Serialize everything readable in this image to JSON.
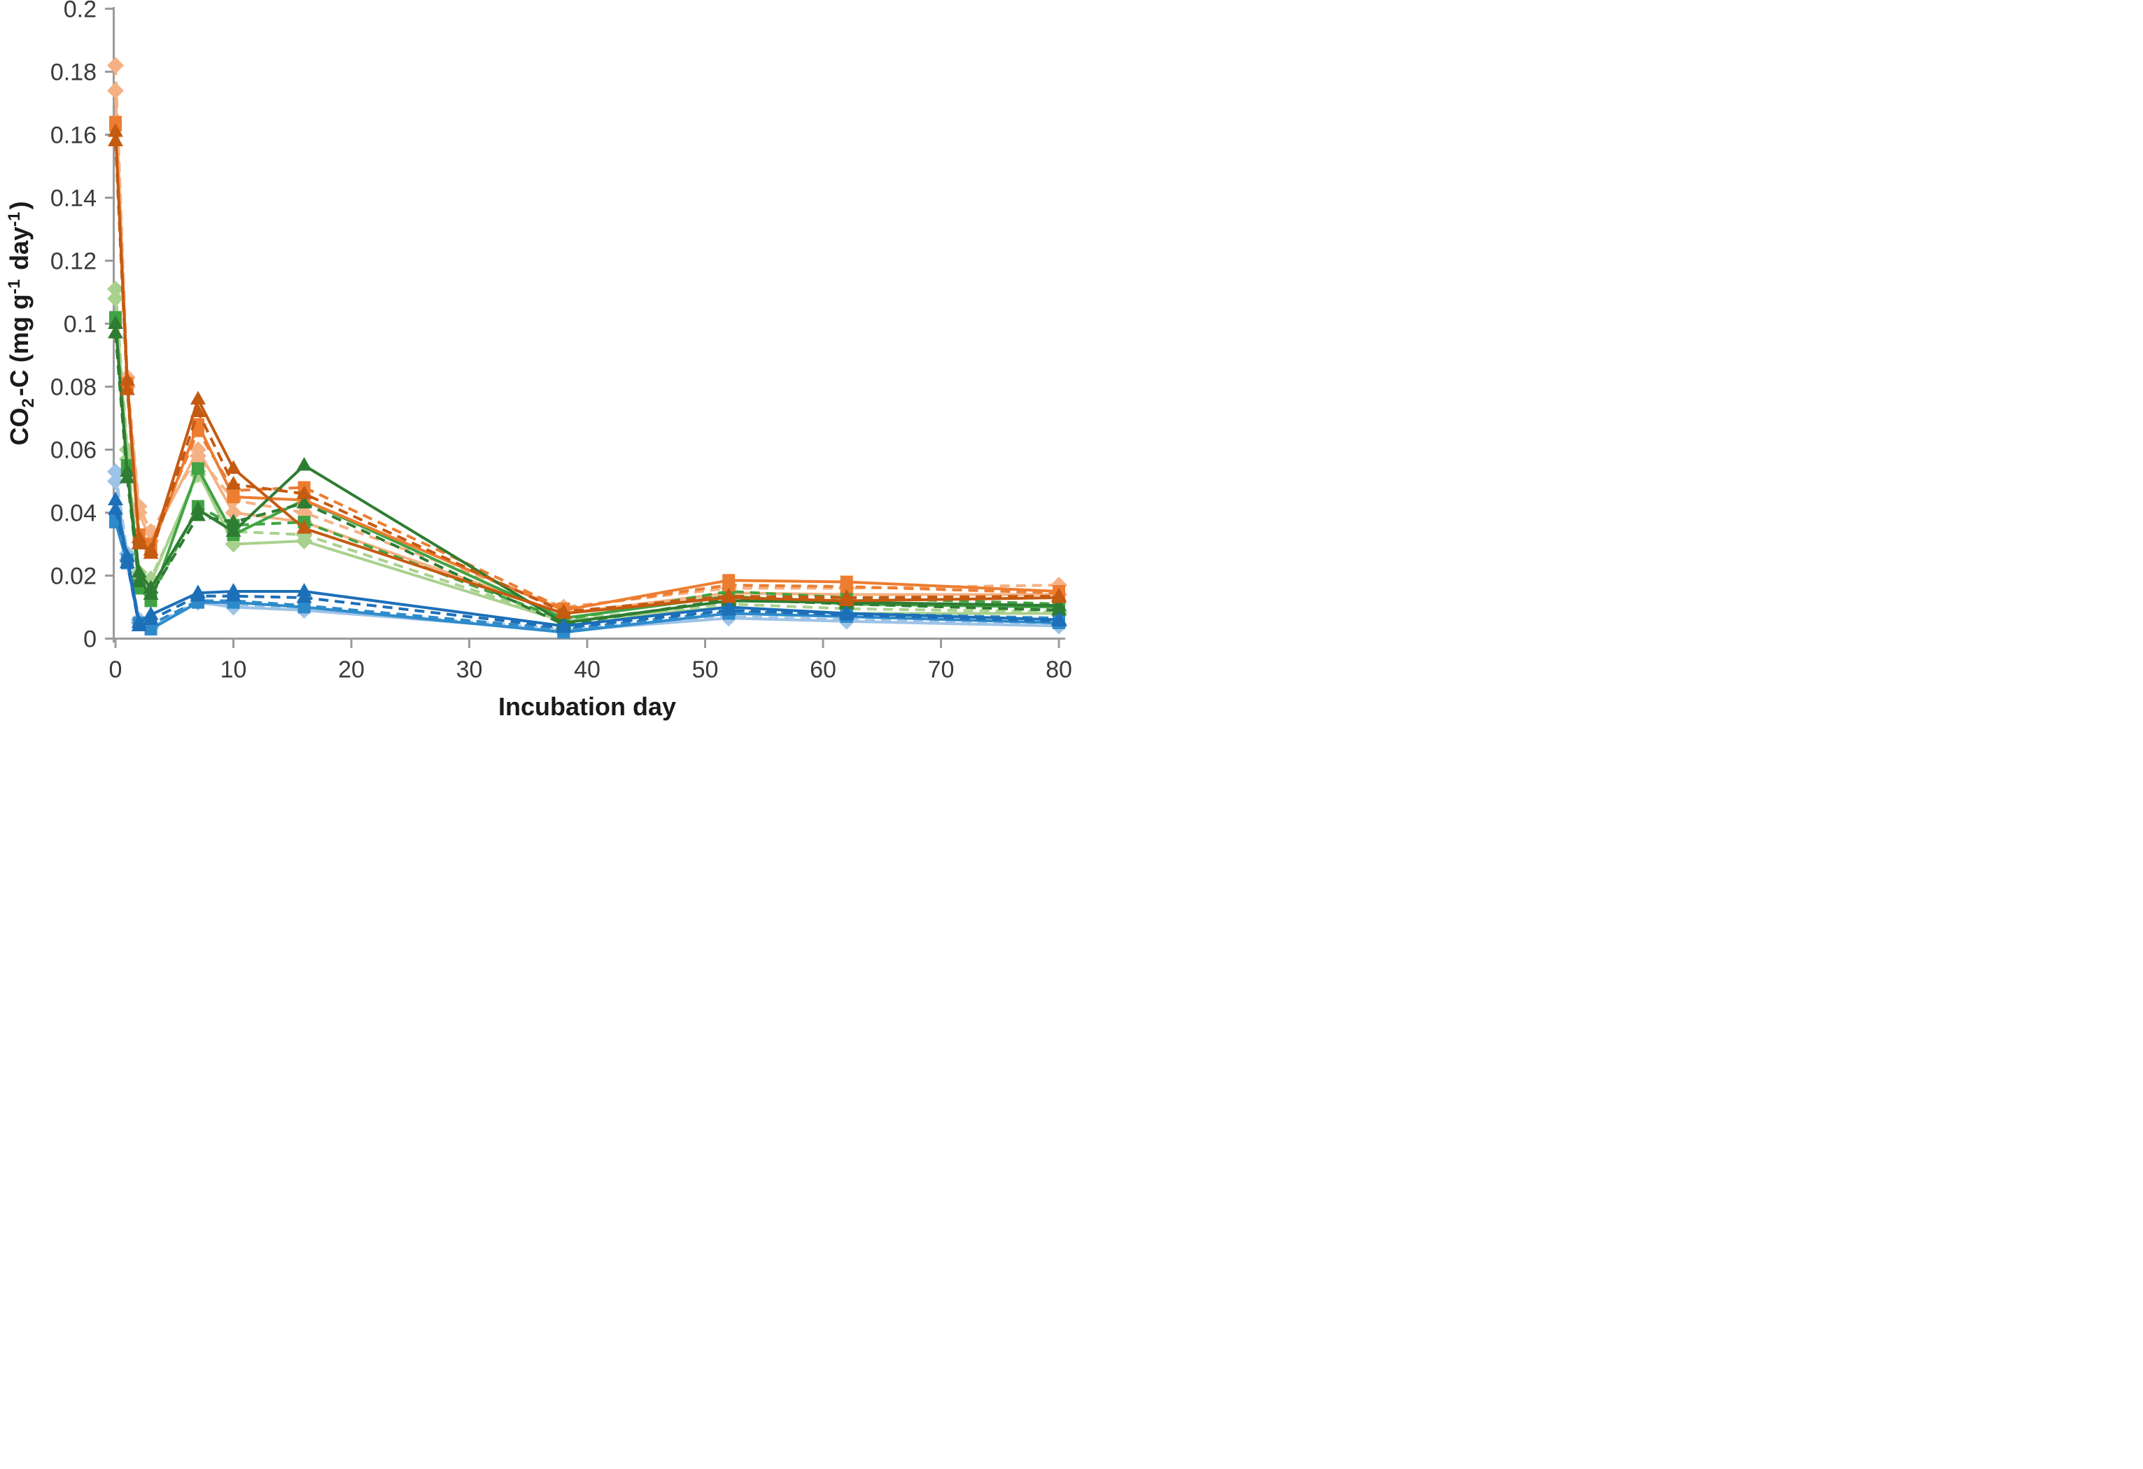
{
  "chart_data": {
    "type": "line",
    "title": "",
    "xlabel": "Incubation day",
    "ylabel": "CO2-C (mg g-1 day-1)",
    "ylabel_parts": [
      [
        "t",
        "CO"
      ],
      [
        "sub",
        "2"
      ],
      [
        "t",
        "-C (mg g"
      ],
      [
        "sup",
        "-1"
      ],
      [
        "t",
        " day"
      ],
      [
        "sup",
        "-1"
      ],
      [
        "t",
        ")"
      ]
    ],
    "x": [
      0,
      1,
      2,
      3,
      7,
      10,
      16,
      38,
      52,
      62,
      80
    ],
    "xlim": [
      0,
      80
    ],
    "ylim": [
      0,
      0.2
    ],
    "grid": false,
    "legend": "none",
    "x_ticks": {
      "values": [
        0,
        10,
        20,
        30,
        40,
        50,
        60,
        70,
        80
      ],
      "labels": [
        "0",
        "10",
        "20",
        "30",
        "40",
        "50",
        "60",
        "70",
        "80"
      ]
    },
    "y_ticks": {
      "values": [
        0,
        0.02,
        0.04,
        0.06,
        0.08,
        0.1,
        0.12,
        0.14,
        0.16,
        0.18,
        0.2
      ],
      "labels": [
        "0",
        "0.02",
        "0.04",
        "0.06",
        "0.08",
        "0.1",
        "0.12",
        "0.14",
        "0.16",
        "0.18",
        "0.2"
      ]
    },
    "axis_color": "#9b9b9b",
    "tick_label_color": "#3a3a3a",
    "title_color": "#1a1a1a",
    "series": [
      {
        "name": "green-diamond-solid",
        "color": "#A9D18E",
        "marker": "diamond",
        "line": "solid",
        "values": [
          0.108,
          0.057,
          0.019,
          0.018,
          0.053,
          0.03,
          0.031,
          0.0055,
          0.01,
          0.008,
          0.008
        ]
      },
      {
        "name": "green-diamond-dashed",
        "color": "#A9D18E",
        "marker": "diamond",
        "line": "dashed",
        "values": [
          0.111,
          0.06,
          0.021,
          0.019,
          0.052,
          0.034,
          0.033,
          0.006,
          0.011,
          0.0095,
          0.0085
        ]
      },
      {
        "name": "blue-diamond-solid",
        "color": "#9DC3E6",
        "marker": "diamond",
        "line": "solid",
        "values": [
          0.05,
          0.025,
          0.005,
          0.0035,
          0.0115,
          0.01,
          0.009,
          0.0025,
          0.0065,
          0.0055,
          0.004
        ]
      },
      {
        "name": "blue-diamond-dashed",
        "color": "#9DC3E6",
        "marker": "diamond",
        "line": "dashed",
        "values": [
          0.053,
          0.027,
          0.006,
          0.004,
          0.012,
          0.011,
          0.0095,
          0.003,
          0.007,
          0.006,
          0.0045
        ]
      },
      {
        "name": "orange-diamond-solid",
        "color": "#F5B183",
        "marker": "diamond",
        "line": "solid",
        "values": [
          0.174,
          0.08,
          0.04,
          0.031,
          0.06,
          0.04,
          0.037,
          0.008,
          0.0145,
          0.014,
          0.014
        ]
      },
      {
        "name": "orange-diamond-dashed",
        "color": "#F5B183",
        "marker": "diamond",
        "line": "dashed",
        "values": [
          0.182,
          0.083,
          0.042,
          0.034,
          0.058,
          0.044,
          0.04,
          0.01,
          0.016,
          0.016,
          0.017
        ]
      },
      {
        "name": "green-square-solid",
        "color": "#41A344",
        "marker": "square",
        "line": "solid",
        "values": [
          0.101,
          0.054,
          0.016,
          0.012,
          0.054,
          0.033,
          0.044,
          0.0065,
          0.0135,
          0.011,
          0.01
        ]
      },
      {
        "name": "green-square-dashed",
        "color": "#41A344",
        "marker": "square",
        "line": "dashed",
        "values": [
          0.102,
          0.055,
          0.017,
          0.013,
          0.042,
          0.036,
          0.037,
          0.006,
          0.015,
          0.013,
          0.011
        ]
      },
      {
        "name": "blue-square-solid",
        "color": "#2E8BCB",
        "marker": "square",
        "line": "solid",
        "values": [
          0.037,
          0.024,
          0.0045,
          0.003,
          0.0115,
          0.0115,
          0.01,
          0.002,
          0.008,
          0.007,
          0.005
        ]
      },
      {
        "name": "blue-square-dashed",
        "color": "#2E8BCB",
        "marker": "square",
        "line": "dashed",
        "values": [
          0.038,
          0.025,
          0.005,
          0.0045,
          0.012,
          0.012,
          0.0105,
          0.003,
          0.0085,
          0.008,
          0.0065
        ]
      },
      {
        "name": "orange-square-solid",
        "color": "#ED7D31",
        "marker": "square",
        "line": "solid",
        "values": [
          0.163,
          0.08,
          0.031,
          0.028,
          0.068,
          0.045,
          0.044,
          0.009,
          0.0185,
          0.018,
          0.015
        ]
      },
      {
        "name": "orange-square-dashed",
        "color": "#ED7D31",
        "marker": "square",
        "line": "dashed",
        "values": [
          0.164,
          0.081,
          0.033,
          0.03,
          0.066,
          0.047,
          0.048,
          0.0095,
          0.017,
          0.0165,
          0.0145
        ]
      },
      {
        "name": "green-triangle-solid",
        "color": "#2E7D32",
        "marker": "triangle",
        "line": "solid",
        "values": [
          0.1,
          0.053,
          0.021,
          0.016,
          0.041,
          0.034,
          0.055,
          0.005,
          0.012,
          0.0115,
          0.0105
        ]
      },
      {
        "name": "green-triangle-dashed",
        "color": "#2E7D32",
        "marker": "triangle",
        "line": "dashed",
        "values": [
          0.097,
          0.051,
          0.018,
          0.014,
          0.039,
          0.037,
          0.043,
          0.0045,
          0.0125,
          0.011,
          0.009
        ]
      },
      {
        "name": "blue-triangle-solid",
        "color": "#1D6FB8",
        "marker": "triangle",
        "line": "solid",
        "values": [
          0.044,
          0.026,
          0.005,
          0.0076,
          0.0145,
          0.015,
          0.015,
          0.004,
          0.01,
          0.008,
          0.006
        ]
      },
      {
        "name": "blue-triangle-dashed",
        "color": "#1D6FB8",
        "marker": "triangle",
        "line": "dashed",
        "values": [
          0.041,
          0.024,
          0.004,
          0.006,
          0.0135,
          0.0135,
          0.013,
          0.0035,
          0.009,
          0.0075,
          0.0055
        ]
      },
      {
        "name": "orange-triangle-solid",
        "color": "#C55A11",
        "marker": "triangle",
        "line": "solid",
        "values": [
          0.161,
          0.082,
          0.03,
          0.028,
          0.076,
          0.054,
          0.035,
          0.008,
          0.013,
          0.012,
          0.013
        ]
      },
      {
        "name": "orange-triangle-dashed",
        "color": "#C55A11",
        "marker": "triangle",
        "line": "dashed",
        "values": [
          0.158,
          0.079,
          0.032,
          0.027,
          0.072,
          0.049,
          0.046,
          0.0085,
          0.0135,
          0.013,
          0.0135
        ]
      }
    ]
  }
}
